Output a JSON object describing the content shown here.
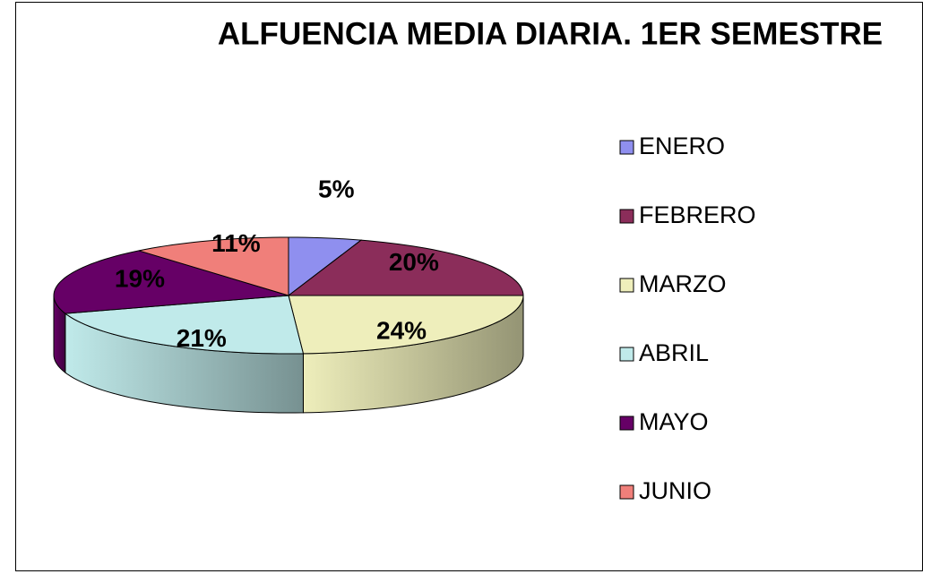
{
  "chart_data": {
    "type": "pie",
    "title": "ALFUENCIA MEDIA DIARIA. 1ER SEMESTRE",
    "categories": [
      "ENERO",
      "FEBRERO",
      "MARZO",
      "ABRIL",
      "MAYO",
      "JUNIO"
    ],
    "values": [
      5,
      20,
      24,
      21,
      19,
      11
    ],
    "value_labels": [
      "5%",
      "20%",
      "24%",
      "21%",
      "19%",
      "11%"
    ],
    "colors": [
      "#8f8fef",
      "#8b2d5a",
      "#eeeebb",
      "#c0eaea",
      "#660066",
      "#f07f7a"
    ],
    "legend": "right"
  }
}
